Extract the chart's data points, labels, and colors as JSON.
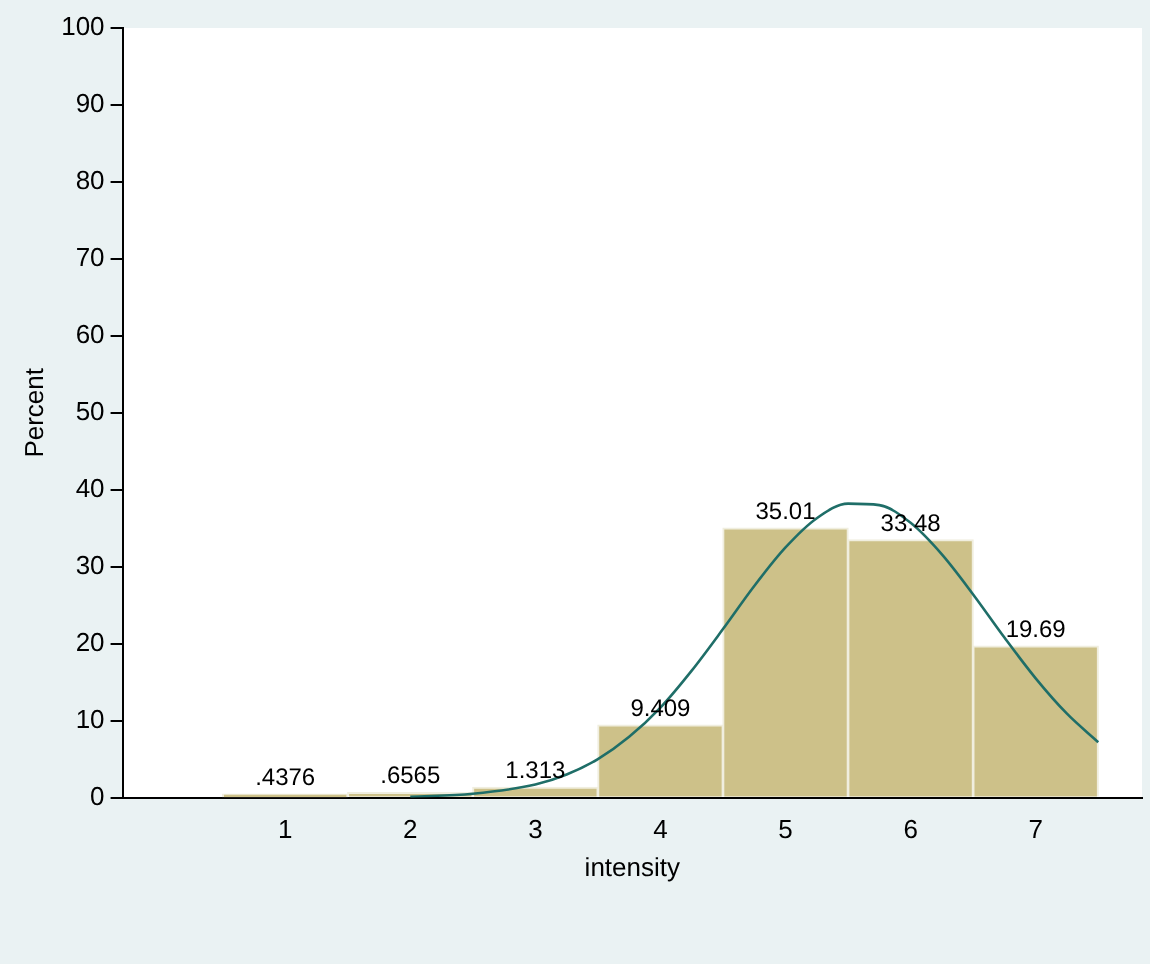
{
  "chart_data": {
    "type": "histogram",
    "xlabel": "intensity",
    "ylabel": "Percent",
    "bins": [
      0.5,
      1.5,
      2.5,
      3.5,
      4.5,
      5.5,
      6.5,
      7.5
    ],
    "values": [
      0.4376,
      0.6565,
      1.313,
      9.409,
      35.01,
      33.48,
      19.69
    ],
    "value_labels": [
      ".4376",
      ".6565",
      "1.313",
      "9.409",
      "35.01",
      "33.48",
      "19.69"
    ],
    "color": "#cdc189",
    "series": [
      {
        "type": "line",
        "color": "#1f6e68",
        "x": [
          2,
          2.5,
          3,
          3.25,
          3.5,
          3.75,
          4,
          4.25,
          4.5,
          4.75,
          5,
          5.25,
          5.5,
          5.75,
          6,
          6.25,
          6.5,
          6.75,
          7,
          7.25,
          7.5
        ],
        "values": [
          0.1,
          0.5,
          1.7,
          3,
          5,
          7.9,
          11.7,
          16.5,
          21.9,
          27.5,
          32.5,
          36.3,
          38.2,
          38,
          35.7,
          31.6,
          26.4,
          20.8,
          15.5,
          10.9,
          7.2
        ]
      }
    ],
    "xlim": [
      -0.3,
      7.85
    ],
    "xticks": [
      1,
      2,
      3,
      4,
      5,
      6,
      7
    ],
    "ylim": [
      0,
      100
    ],
    "yticks": [
      0,
      10,
      20,
      30,
      40,
      50,
      60,
      70,
      80,
      90,
      100
    ],
    "grid": false,
    "legend": false
  }
}
